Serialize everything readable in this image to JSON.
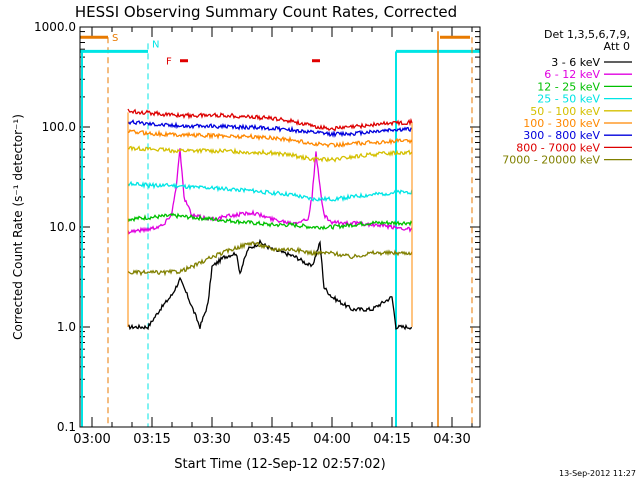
{
  "chart_data": {
    "type": "line",
    "title": "HESSI Observing Summary Count Rates, Corrected",
    "xlabel": "Start Time (12-Sep-12 02:57:02)",
    "ylabel": "Corrected Count Rate (s⁻¹ detector⁻¹)",
    "yscale": "log",
    "ylim": [
      0.1,
      1000
    ],
    "xlim": [
      "02:57:00",
      "04:37:00"
    ],
    "x_unit": "time (UT)",
    "yticks": [
      "0.1",
      "1.0",
      "10.0",
      "100.0",
      "1000.0"
    ],
    "xticks": [
      "03:00",
      "03:15",
      "03:30",
      "03:45",
      "04:00",
      "04:15",
      "04:30"
    ],
    "grid": false,
    "legend_position": "top-right",
    "legend_header": [
      "Det 1,3,5,6,7,9,",
      "Att 0"
    ],
    "footer_date": "13-Sep-2012 11:27",
    "markers": {
      "S": {
        "label": "S",
        "color": "#e87a00",
        "start": "02:57:00",
        "end": "03:04:00",
        "level": 790,
        "line_at": "03:04:00"
      },
      "N": {
        "label": "N",
        "color": "#00e5e5",
        "end": "03:14:00",
        "resume": "04:16:00",
        "level": 570
      },
      "F": {
        "label": "F",
        "color": "#e00000",
        "segments": [
          [
            "03:22:00",
            "03:24:00"
          ],
          [
            "03:55:00",
            "03:57:00"
          ]
        ],
        "level": 460
      },
      "end_orange": {
        "start": "04:27:00",
        "end": "04:34:30",
        "level": 790,
        "line_at": "04:26:30",
        "dashed_at": "04:35:00"
      }
    },
    "data_gaps": {
      "first_sample": "03:09:00",
      "last_sample": "04:20:00"
    },
    "series": [
      {
        "name": "3 - 6 keV",
        "color": "#000000",
        "x": [
          "03:09",
          "03:14",
          "03:17",
          "03:20",
          "03:22",
          "03:24",
          "03:27",
          "03:29",
          "03:30",
          "03:33",
          "03:36",
          "03:37",
          "03:39",
          "03:42",
          "03:45",
          "03:48",
          "03:51",
          "03:55",
          "03:57",
          "03:58",
          "04:00",
          "04:05",
          "04:10",
          "04:15",
          "04:16",
          "04:20"
        ],
        "y": [
          1.0,
          1.0,
          1.5,
          2.1,
          3.0,
          2.0,
          1.0,
          1.7,
          4.0,
          5.0,
          5.5,
          3.5,
          6.0,
          7.0,
          6.0,
          5.5,
          5.0,
          4.0,
          7.0,
          2.5,
          2.0,
          1.5,
          1.5,
          2.0,
          1.0,
          1.0
        ]
      },
      {
        "name": "6 - 12 keV",
        "color": "#e000e0",
        "x": [
          "03:09",
          "03:14",
          "03:18",
          "03:20",
          "03:21",
          "03:22",
          "03:23",
          "03:25",
          "03:30",
          "03:35",
          "03:40",
          "03:45",
          "03:50",
          "03:54",
          "03:55",
          "03:56",
          "03:57",
          "03:58",
          "04:00",
          "04:05",
          "04:10",
          "04:15",
          "04:20"
        ],
        "y": [
          9.0,
          9.5,
          10.5,
          14.0,
          25.0,
          60.0,
          20.0,
          13.0,
          12.0,
          13.0,
          14.0,
          12.0,
          11.0,
          12.0,
          20.0,
          55.0,
          25.0,
          13.0,
          11.0,
          11.0,
          10.5,
          10.0,
          9.5
        ]
      },
      {
        "name": "12 - 25 keV",
        "color": "#00c000",
        "x": [
          "03:09",
          "03:15",
          "03:20",
          "03:25",
          "03:30",
          "03:35",
          "03:40",
          "03:45",
          "03:50",
          "03:55",
          "04:00",
          "04:05",
          "04:10",
          "04:15",
          "04:20"
        ],
        "y": [
          12.0,
          12.5,
          13.0,
          12.5,
          12.0,
          11.5,
          11.0,
          10.5,
          10.5,
          10.0,
          10.0,
          10.5,
          11.0,
          11.0,
          11.0
        ]
      },
      {
        "name": "25 - 50 keV",
        "color": "#00e5e5",
        "x": [
          "03:09",
          "03:15",
          "03:20",
          "03:25",
          "03:30",
          "03:35",
          "03:40",
          "03:45",
          "03:50",
          "03:55",
          "04:00",
          "04:05",
          "04:10",
          "04:15",
          "04:20"
        ],
        "y": [
          27.0,
          26.0,
          26.0,
          25.0,
          24.5,
          24.0,
          23.0,
          22.0,
          21.0,
          19.0,
          19.0,
          20.0,
          21.0,
          22.0,
          22.5
        ]
      },
      {
        "name": "50 - 100 keV",
        "color": "#d4c000",
        "x": [
          "03:09",
          "03:15",
          "03:20",
          "03:25",
          "03:30",
          "03:35",
          "03:40",
          "03:45",
          "03:50",
          "03:55",
          "04:00",
          "04:05",
          "04:10",
          "04:15",
          "04:20"
        ],
        "y": [
          62.0,
          60.0,
          58.0,
          58.0,
          58.0,
          57.0,
          56.0,
          55.0,
          52.0,
          48.0,
          47.0,
          50.0,
          53.0,
          55.0,
          56.0
        ]
      },
      {
        "name": "100 - 300 keV",
        "color": "#ff8800",
        "x": [
          "03:09",
          "03:15",
          "03:20",
          "03:25",
          "03:30",
          "03:35",
          "03:40",
          "03:45",
          "03:50",
          "03:55",
          "04:00",
          "04:05",
          "04:10",
          "04:15",
          "04:20"
        ],
        "y": [
          90.0,
          86.0,
          84.0,
          83.0,
          82.0,
          81.0,
          80.0,
          78.0,
          74.0,
          68.0,
          66.0,
          68.0,
          70.0,
          72.0,
          73.0
        ]
      },
      {
        "name": "300 - 800 keV",
        "color": "#0000dd",
        "x": [
          "03:09",
          "03:15",
          "03:20",
          "03:25",
          "03:30",
          "03:35",
          "03:40",
          "03:45",
          "03:50",
          "03:55",
          "04:00",
          "04:05",
          "04:10",
          "04:15",
          "04:20"
        ],
        "y": [
          112.0,
          108.0,
          104.0,
          102.0,
          102.0,
          100.0,
          99.0,
          97.0,
          94.0,
          88.0,
          85.0,
          86.0,
          90.0,
          94.0,
          95.0
        ]
      },
      {
        "name": "800 - 7000 keV",
        "color": "#dd0000",
        "x": [
          "03:09",
          "03:15",
          "03:20",
          "03:25",
          "03:30",
          "03:35",
          "03:40",
          "03:45",
          "03:50",
          "03:55",
          "04:00",
          "04:05",
          "04:10",
          "04:15",
          "04:20"
        ],
        "y": [
          145.0,
          138.0,
          132.0,
          130.0,
          132.0,
          130.0,
          126.0,
          122.0,
          115.0,
          102.0,
          96.0,
          100.0,
          105.0,
          110.0,
          112.0
        ]
      },
      {
        "name": "7000 - 20000 keV",
        "color": "#808000",
        "x": [
          "03:09",
          "03:15",
          "03:18",
          "03:22",
          "03:25",
          "03:30",
          "03:35",
          "03:40",
          "03:45",
          "03:50",
          "03:55",
          "04:00",
          "04:05",
          "04:10",
          "04:15",
          "04:20"
        ],
        "y": [
          3.5,
          3.5,
          3.5,
          3.6,
          4.0,
          5.0,
          6.0,
          7.0,
          6.0,
          6.0,
          5.5,
          5.5,
          5.0,
          5.5,
          5.5,
          5.5
        ]
      }
    ]
  }
}
